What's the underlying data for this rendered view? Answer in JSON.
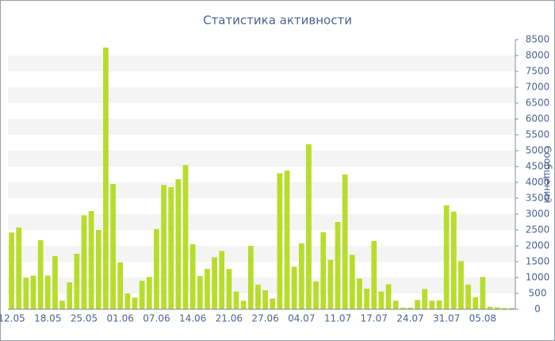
{
  "chart_data": {
    "type": "bar",
    "title": "Статистика активности",
    "y_axis_label": "Сообщений",
    "categories": [
      "12.05",
      null,
      null,
      null,
      null,
      "18.05",
      null,
      null,
      null,
      null,
      "25.05",
      null,
      null,
      null,
      null,
      "01.06",
      null,
      null,
      null,
      null,
      "07.06",
      null,
      null,
      null,
      null,
      "14.06",
      null,
      null,
      null,
      null,
      "21.06",
      null,
      null,
      null,
      null,
      "27.06",
      null,
      null,
      null,
      null,
      "04.07",
      null,
      null,
      null,
      null,
      "11.07",
      null,
      null,
      null,
      null,
      "17.07",
      null,
      null,
      null,
      null,
      "24.07",
      null,
      null,
      null,
      null,
      "31.07",
      null,
      null,
      null,
      null,
      "05.08",
      null,
      null,
      null,
      null
    ],
    "values": [
      2420,
      2580,
      1000,
      1060,
      2180,
      1060,
      1680,
      270,
      850,
      1750,
      2960,
      3100,
      2500,
      8250,
      3950,
      1480,
      500,
      370,
      900,
      1020,
      2530,
      3920,
      3850,
      4100,
      4550,
      2050,
      1050,
      1270,
      1640,
      1840,
      1270,
      560,
      270,
      2000,
      780,
      600,
      340,
      4290,
      4370,
      1340,
      2080,
      5200,
      880,
      2430,
      1560,
      2750,
      4250,
      1720,
      970,
      650,
      2150,
      560,
      790,
      270,
      50,
      50,
      290,
      640,
      270,
      280,
      3280,
      3080,
      1520,
      780,
      380,
      1020,
      80,
      60,
      40,
      40
    ],
    "color": "#b8dc2c",
    "ylim": [
      0,
      8500
    ],
    "yticks": [
      0,
      500,
      1000,
      1500,
      2000,
      2500,
      3000,
      3500,
      4000,
      4500,
      5000,
      5500,
      6000,
      6500,
      7000,
      7500,
      8000,
      8500
    ],
    "grid": true
  }
}
